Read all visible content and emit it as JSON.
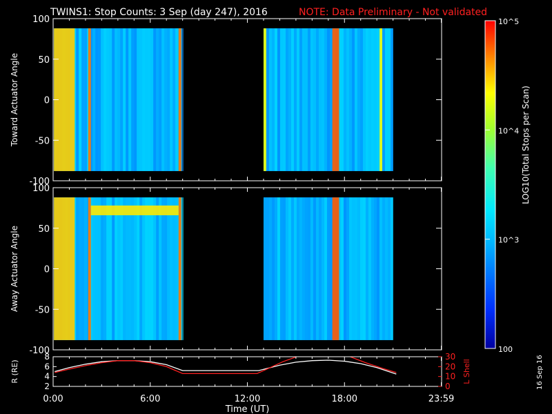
{
  "header": {
    "title": "TWINS1: Stop Counts:  3 Sep (day 247), 2016",
    "note": "NOTE: Data Preliminary - Not validated",
    "note_color": "#ff2020"
  },
  "side_stamp": "16 Sep 16",
  "colorbar": {
    "label": "LOG10(Total Stops per Scan)",
    "tick_labels": [
      "10^5",
      "10^4",
      "10^3",
      "100"
    ],
    "tick_values": [
      100000,
      10000,
      1000,
      100
    ],
    "scale": "log",
    "range": [
      100,
      100000
    ]
  },
  "chart_data": [
    {
      "type": "heatmap",
      "ylabel": "Toward Actuator Angle",
      "xlim": [
        "0:00",
        "23:59"
      ],
      "ylim": [
        -100,
        100
      ],
      "yticks": [
        100,
        50,
        0,
        -50,
        -100
      ],
      "data_blocks": [
        {
          "start": "0:03",
          "end": "7:58",
          "angle_range": [
            -88,
            88
          ]
        },
        {
          "start": "13:00",
          "end": "21:00",
          "angle_range": [
            -88,
            88
          ]
        }
      ],
      "typical_counts": 1000,
      "high_count_bands": [
        {
          "start": "0:03",
          "end": "1:20",
          "counts": 30000
        },
        {
          "start": "2:10",
          "end": "2:20",
          "counts": 50000
        },
        {
          "start": "7:45",
          "end": "7:55",
          "counts": 50000
        },
        {
          "start": "13:00",
          "end": "13:10",
          "counts": 20000
        },
        {
          "start": "17:15",
          "end": "17:40",
          "counts": 60000
        },
        {
          "start": "20:10",
          "end": "20:20",
          "counts": 20000
        }
      ]
    },
    {
      "type": "heatmap",
      "ylabel": "Away Actuator Angle",
      "xlim": [
        "0:00",
        "23:59"
      ],
      "ylim": [
        -100,
        100
      ],
      "yticks": [
        100,
        50,
        0,
        -50,
        -100
      ],
      "data_blocks": [
        {
          "start": "0:03",
          "end": "7:58",
          "angle_range": [
            -88,
            88
          ]
        },
        {
          "start": "13:00",
          "end": "21:00",
          "angle_range": [
            -88,
            88
          ]
        }
      ],
      "typical_counts": 1000,
      "high_count_bands": [
        {
          "start": "0:03",
          "end": "1:20",
          "counts": 30000
        },
        {
          "start": "2:10",
          "end": "2:20",
          "counts": 50000
        },
        {
          "start": "7:45",
          "end": "7:55",
          "counts": 50000
        },
        {
          "start": "17:15",
          "end": "17:40",
          "counts": 60000
        }
      ],
      "high_count_ridge": {
        "start": "2:20",
        "end": "7:45",
        "angle": 72,
        "counts": 25000
      }
    },
    {
      "type": "line",
      "xlabel": "Time (UT)",
      "x_tick_labels": [
        "0:00",
        "6:00",
        "12:00",
        "18:00",
        "23:59"
      ],
      "x_ticks_hours": [
        0,
        6,
        12,
        18,
        23.98
      ],
      "ylabel_left": "R (RE)",
      "ylim_left": [
        2,
        8
      ],
      "yticks_left": [
        2,
        4,
        6,
        8
      ],
      "ylabel_right": "L Shell",
      "ylim_right": [
        0,
        30
      ],
      "yticks_right": [
        0,
        10,
        20,
        30
      ],
      "right_axis_color": "#ff2020",
      "series": [
        {
          "axis": "left",
          "color": "#ffffff",
          "points": [
            [
              0.1,
              5.0
            ],
            [
              1,
              5.8
            ],
            [
              2,
              6.5
            ],
            [
              3,
              7.0
            ],
            [
              4,
              7.2
            ],
            [
              5,
              7.2
            ],
            [
              6,
              7.0
            ],
            [
              7,
              6.4
            ],
            [
              8,
              5.2
            ],
            [
              12.7,
              5.2
            ],
            [
              14,
              6.3
            ],
            [
              15,
              6.9
            ],
            [
              16,
              7.2
            ],
            [
              17,
              7.3
            ],
            [
              18,
              7.1
            ],
            [
              19,
              6.6
            ],
            [
              20,
              5.8
            ],
            [
              21.2,
              4.5
            ]
          ]
        },
        {
          "axis": "right",
          "color": "#ff2020",
          "points": [
            [
              0.1,
              14
            ],
            [
              1,
              17.5
            ],
            [
              2,
              21
            ],
            [
              3,
              24
            ],
            [
              4,
              26
            ],
            [
              5,
              26
            ],
            [
              6,
              24
            ],
            [
              7,
              20
            ],
            [
              8,
              13
            ],
            [
              12.6,
              13
            ],
            [
              14.2,
              25
            ],
            [
              15.2,
              31
            ],
            [
              18.2,
              31
            ],
            [
              19.3,
              24
            ],
            [
              20.4,
              18
            ],
            [
              21.2,
              14
            ]
          ]
        }
      ]
    }
  ]
}
